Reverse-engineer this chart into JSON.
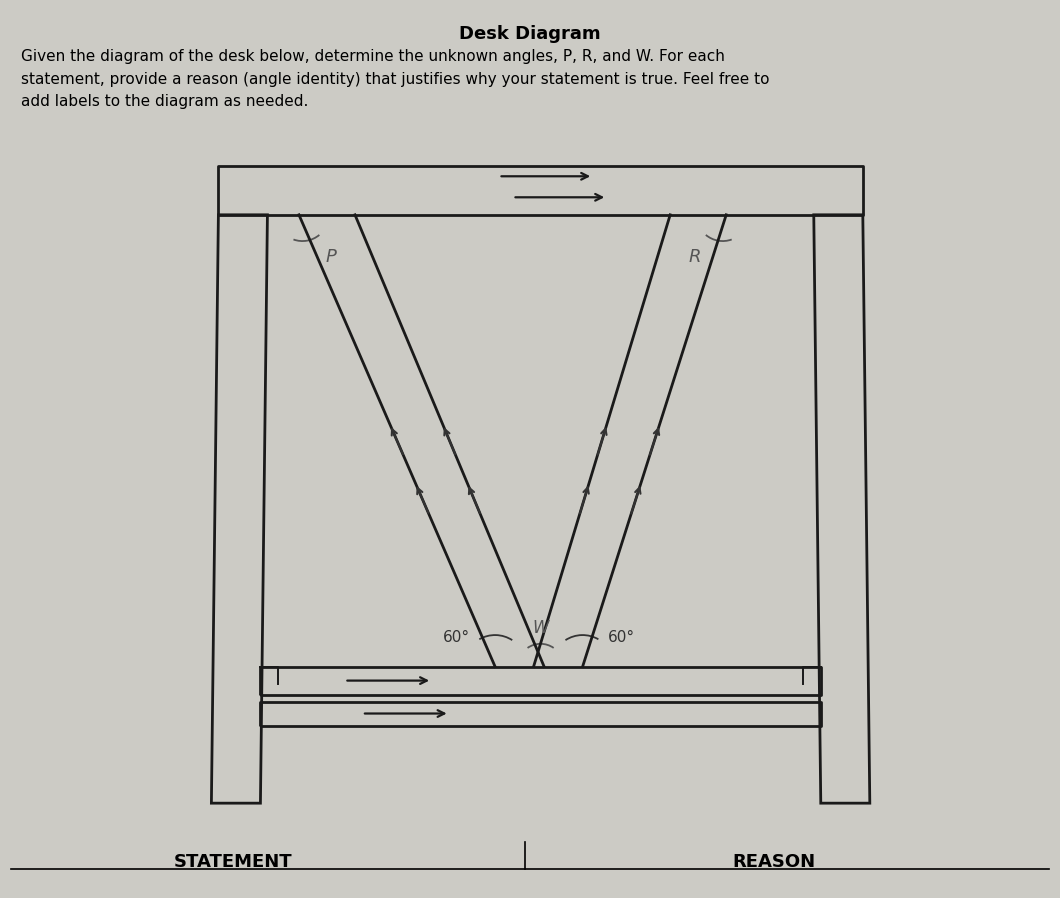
{
  "title": "Desk Diagram",
  "description_lines": [
    "Given the diagram of the desk below, determine the unknown angles, P, R, and W. For each",
    "statement, provide a reason (angle identity) that justifies why your statement is true. Feel free to",
    "add labels to the diagram as needed."
  ],
  "bottom_labels": [
    "STATEMENT",
    "REASON"
  ],
  "bg_color": "#cccbc5",
  "line_color": "#1a1a1a",
  "label_color": "#555555"
}
